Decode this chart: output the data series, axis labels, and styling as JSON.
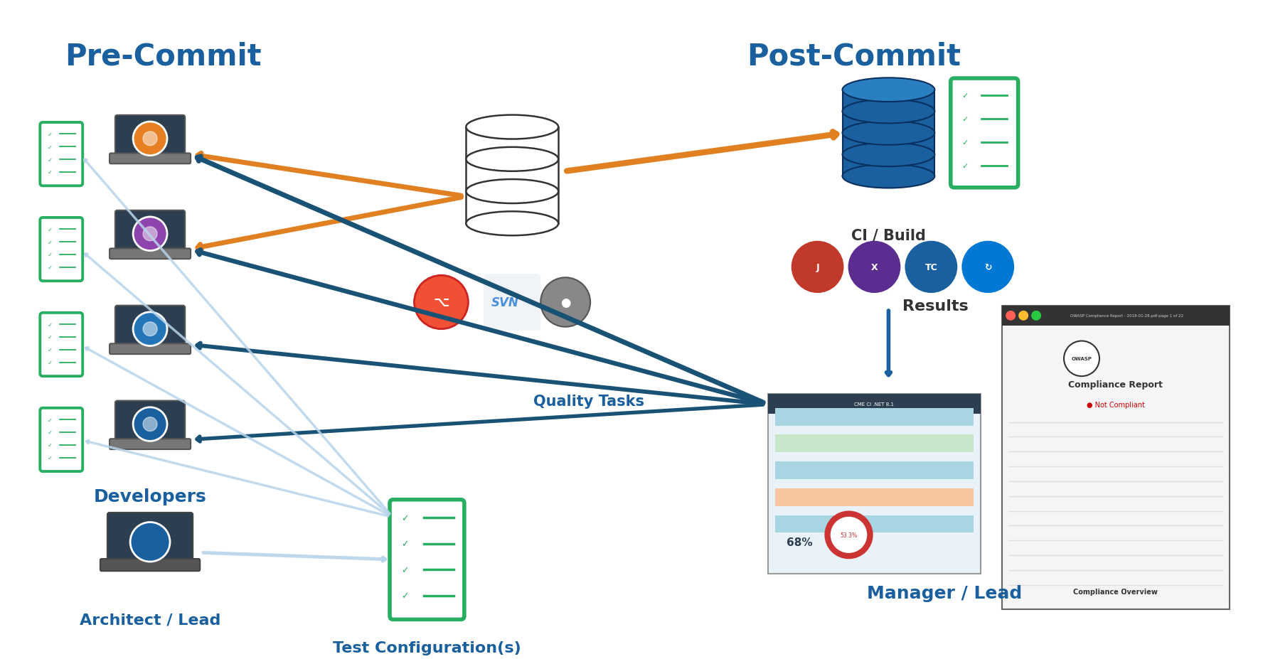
{
  "bg_color": "#ffffff",
  "title_precommit": "Pre-Commit",
  "title_postcommit": "Post-Commit",
  "label_developers": "Developers",
  "label_architect": "Architect / Lead",
  "label_test_config": "Test Configuration(s)",
  "label_ci_build": "CI / Build",
  "label_results": "Results",
  "label_manager": "Manager / Lead",
  "label_quality_tasks": "Quality Tasks",
  "color_blue_dark": "#1a5f9e",
  "color_orange": "#f5a623",
  "color_arrow_blue": "#1a5276",
  "color_arrow_orange": "#e08020",
  "color_arrow_light_blue": "#b8d4ea",
  "color_green": "#27ae60",
  "color_db_blue": "#1a5f9e"
}
